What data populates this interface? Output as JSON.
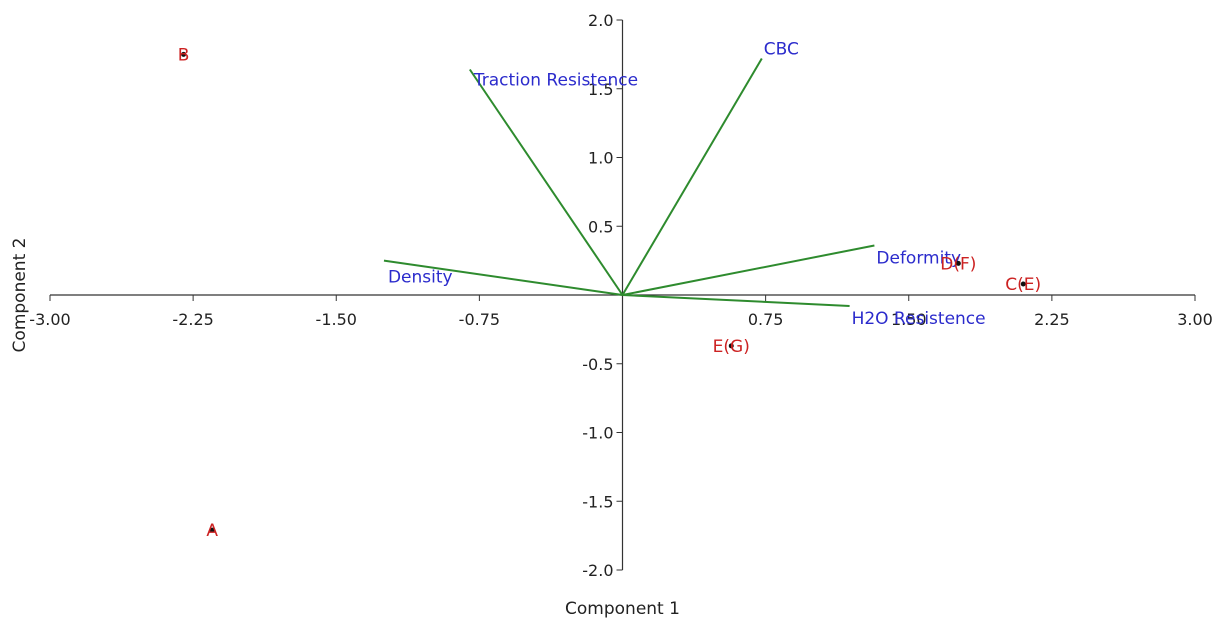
{
  "chart_data": {
    "type": "scatter",
    "title": "",
    "xlabel": "Component 1",
    "ylabel": "Component 2",
    "xlim": [
      -3.0,
      3.0
    ],
    "ylim": [
      -2.0,
      2.0
    ],
    "x_ticks": [
      -3.0,
      -2.25,
      -1.5,
      -0.75,
      0.75,
      1.5,
      2.25,
      3.0
    ],
    "x_tick_labels": [
      "-3.00",
      "-2.25",
      "-1.50",
      "-0.75",
      "0.75",
      "1.50",
      "2.25",
      "3.00"
    ],
    "y_ticks": [
      2.0,
      1.5,
      1.0,
      0.5,
      -0.5,
      -1.0,
      -1.5,
      -2.0
    ],
    "y_tick_labels": [
      "2.0",
      "1.5",
      "1.0",
      "0.5",
      "-0.5",
      "-1.0",
      "-1.5",
      "-2.0"
    ],
    "grid": false,
    "legend": "none",
    "colors": {
      "vector": "#2e8b2e",
      "vector_label": "#2b2bcc",
      "point": "#cc2222",
      "marker": "#111111",
      "axis": "#333333"
    },
    "vectors": [
      {
        "label": "Traction Resistence",
        "x": -0.8,
        "y": 1.64
      },
      {
        "label": "CBC",
        "x": 0.73,
        "y": 1.72
      },
      {
        "label": "Density",
        "x": -1.25,
        "y": 0.25
      },
      {
        "label": "Deformity",
        "x": 1.32,
        "y": 0.36
      },
      {
        "label": "H2O Resistence",
        "x": 1.19,
        "y": -0.08
      }
    ],
    "points": [
      {
        "label": "B",
        "x": -2.3,
        "y": 1.75
      },
      {
        "label": "A",
        "x": -2.15,
        "y": -1.71
      },
      {
        "label": "E(G)",
        "x": 0.57,
        "y": -0.37
      },
      {
        "label": "D(F)",
        "x": 1.76,
        "y": 0.23
      },
      {
        "label": "C(E)",
        "x": 2.1,
        "y": 0.08
      }
    ]
  }
}
